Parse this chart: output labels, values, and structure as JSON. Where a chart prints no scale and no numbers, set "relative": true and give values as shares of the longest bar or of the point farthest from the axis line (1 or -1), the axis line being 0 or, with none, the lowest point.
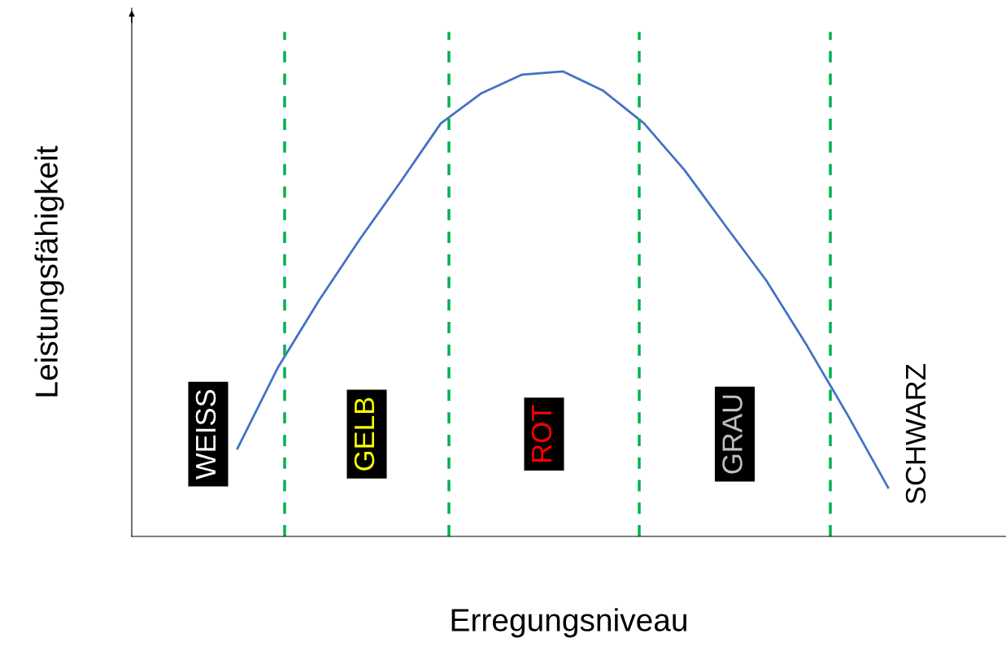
{
  "chart_data": {
    "type": "line",
    "relative": true,
    "xlabel": "Erregungsniveau",
    "ylabel": "Leistungsfähigkeit",
    "categories": [
      null,
      null,
      null,
      null,
      null,
      null,
      null,
      null,
      null,
      null,
      null,
      null,
      null,
      null,
      null,
      null,
      null
    ],
    "series": [
      {
        "color": "#4472c4",
        "values": [
          0.189,
          0.364,
          0.507,
          0.638,
          0.761,
          0.888,
          0.953,
          0.993,
          1.0,
          0.958,
          0.888,
          0.787,
          0.668,
          0.551,
          0.411,
          0.262,
          0.105
        ]
      }
    ],
    "annotations": [
      "WEISS",
      "GELB",
      "ROT",
      "GRAU",
      "SCHWARZ"
    ],
    "grid": false,
    "legend": false,
    "marker": "none",
    "line_style": "solid"
  }
}
